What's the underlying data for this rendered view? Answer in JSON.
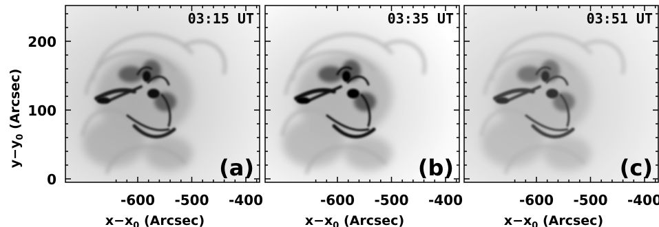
{
  "figure": {
    "y_axis_label": "y−y",
    "y_axis_sub": "0",
    "y_axis_unit": " (Arcsec)",
    "x_axis_label": "x−x",
    "x_axis_sub": "0",
    "x_axis_unit": " (Arcsec)",
    "y_ticks": [
      "0",
      "100",
      "200"
    ],
    "x_ticks": [
      "-600",
      "-500",
      "-400"
    ],
    "panels": [
      {
        "time": "03:15 UT",
        "label": "(a)"
      },
      {
        "time": "03:35 UT",
        "label": "(b)"
      },
      {
        "time": "03:51 UT",
        "label": "(c)"
      }
    ]
  }
}
